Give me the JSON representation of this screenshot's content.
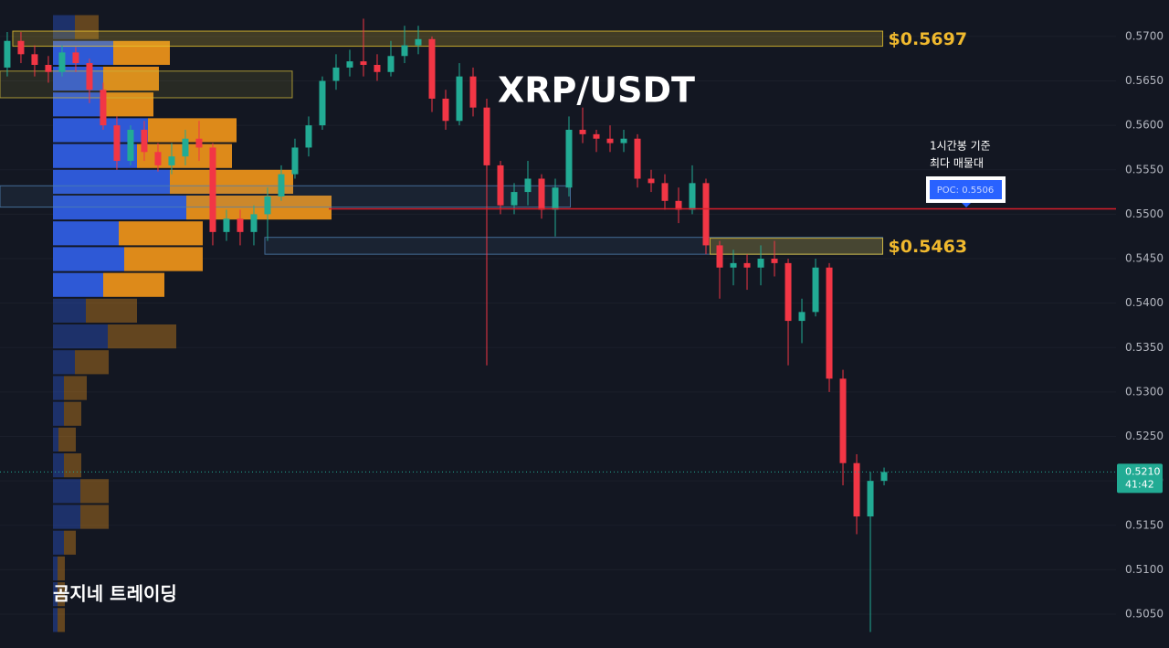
{
  "chart_data": {
    "type": "candlestick",
    "title": "XRP/USDT",
    "watermark": "곰지네 트레이딩",
    "up_color": "#22ab94",
    "down_color": "#f23645",
    "xlim": [
      -0.53,
      80.93
    ],
    "ylim": [
      0.5012,
      0.5741
    ],
    "yticks": [
      {
        "value": 0.505,
        "label": "0.5050"
      },
      {
        "value": 0.51,
        "label": "0.5100"
      },
      {
        "value": 0.515,
        "label": "0.5150"
      },
      {
        "value": 0.52,
        "label": "0.5200"
      },
      {
        "value": 0.525,
        "label": "0.5250"
      },
      {
        "value": 0.53,
        "label": "0.5300"
      },
      {
        "value": 0.535,
        "label": "0.5350"
      },
      {
        "value": 0.54,
        "label": "0.5400"
      },
      {
        "value": 0.545,
        "label": "0.5450"
      },
      {
        "value": 0.55,
        "label": "0.5500"
      },
      {
        "value": 0.555,
        "label": "0.5550"
      },
      {
        "value": 0.56,
        "label": "0.5600"
      },
      {
        "value": 0.565,
        "label": "0.5650"
      },
      {
        "value": 0.57,
        "label": "0.5700"
      }
    ],
    "x": [
      0,
      1,
      2,
      3,
      4,
      5,
      6,
      7,
      8,
      9,
      10,
      11,
      12,
      13,
      14,
      15,
      16,
      17,
      18,
      19,
      20,
      21,
      22,
      23,
      24,
      25,
      26,
      27,
      28,
      29,
      30,
      31,
      32,
      33,
      34,
      35,
      36,
      37,
      38,
      39,
      40,
      41,
      42,
      43,
      44,
      45,
      46,
      47,
      48,
      49,
      50,
      51,
      52,
      53,
      54,
      55,
      56,
      57,
      58,
      59,
      60,
      61,
      62,
      63,
      64
    ],
    "open": [
      0.5665,
      0.5695,
      0.568,
      0.5668,
      0.566,
      0.5682,
      0.567,
      0.564,
      0.56,
      0.556,
      0.5595,
      0.557,
      0.5555,
      0.5565,
      0.5585,
      0.5575,
      0.548,
      0.5495,
      0.548,
      0.55,
      0.552,
      0.5545,
      0.5575,
      0.56,
      0.565,
      0.5665,
      0.5672,
      0.5668,
      0.566,
      0.5678,
      0.569,
      0.5697,
      0.563,
      0.5605,
      0.5655,
      0.562,
      0.5555,
      0.551,
      0.5525,
      0.554,
      0.5505,
      0.553,
      0.5595,
      0.559,
      0.5585,
      0.558,
      0.5585,
      0.554,
      0.5535,
      0.5515,
      0.5505,
      0.5535,
      0.5465,
      0.544,
      0.5445,
      0.544,
      0.545,
      0.5445,
      0.538,
      0.539,
      0.544,
      0.5315,
      0.522,
      0.516,
      0.52
    ],
    "high": [
      0.5705,
      0.5705,
      0.569,
      0.5678,
      0.569,
      0.5688,
      0.5675,
      0.5648,
      0.561,
      0.56,
      0.5605,
      0.558,
      0.558,
      0.5595,
      0.5605,
      0.558,
      0.5505,
      0.5505,
      0.551,
      0.553,
      0.5555,
      0.5585,
      0.561,
      0.5655,
      0.568,
      0.5685,
      0.572,
      0.568,
      0.5695,
      0.5712,
      0.5712,
      0.57,
      0.564,
      0.567,
      0.5665,
      0.563,
      0.556,
      0.5535,
      0.556,
      0.5545,
      0.554,
      0.561,
      0.562,
      0.5595,
      0.56,
      0.5595,
      0.559,
      0.555,
      0.5545,
      0.553,
      0.5555,
      0.554,
      0.547,
      0.546,
      0.5455,
      0.5465,
      0.547,
      0.545,
      0.5405,
      0.545,
      0.5445,
      0.5325,
      0.523,
      0.521,
      0.5215
    ],
    "low": [
      0.5655,
      0.567,
      0.5655,
      0.5648,
      0.5655,
      0.566,
      0.5625,
      0.5595,
      0.555,
      0.5555,
      0.556,
      0.5548,
      0.5545,
      0.5555,
      0.556,
      0.5465,
      0.547,
      0.5465,
      0.5465,
      0.547,
      0.5515,
      0.554,
      0.5565,
      0.5595,
      0.564,
      0.5655,
      0.5655,
      0.565,
      0.5655,
      0.567,
      0.568,
      0.5615,
      0.5595,
      0.56,
      0.561,
      0.533,
      0.55,
      0.55,
      0.551,
      0.5495,
      0.5475,
      0.552,
      0.558,
      0.557,
      0.557,
      0.557,
      0.553,
      0.5525,
      0.5505,
      0.549,
      0.55,
      0.5455,
      0.5405,
      0.542,
      0.5415,
      0.542,
      0.543,
      0.533,
      0.5355,
      0.5385,
      0.53,
      0.5195,
      0.514,
      0.503,
      0.5195
    ],
    "close": [
      0.5695,
      0.568,
      0.5668,
      0.566,
      0.5682,
      0.567,
      0.564,
      0.56,
      0.556,
      0.5595,
      0.557,
      0.5555,
      0.5565,
      0.5585,
      0.5575,
      0.548,
      0.5495,
      0.548,
      0.55,
      0.552,
      0.5545,
      0.5575,
      0.56,
      0.565,
      0.5665,
      0.5672,
      0.5668,
      0.566,
      0.5678,
      0.569,
      0.5697,
      0.563,
      0.5605,
      0.5655,
      0.562,
      0.5555,
      0.551,
      0.5525,
      0.554,
      0.5505,
      0.553,
      0.5595,
      0.559,
      0.5585,
      0.558,
      0.5585,
      0.554,
      0.5535,
      0.5515,
      0.5505,
      0.5535,
      0.5465,
      0.544,
      0.5445,
      0.544,
      0.545,
      0.5445,
      0.538,
      0.539,
      0.544,
      0.5315,
      0.522,
      0.516,
      0.52,
      0.521
    ],
    "profile": {
      "bins": [
        0.5725,
        0.5696,
        0.5667,
        0.5638,
        0.5609,
        0.558,
        0.5551,
        0.5522,
        0.5493,
        0.5464,
        0.5435,
        0.5406,
        0.5377,
        0.5348,
        0.5319,
        0.529,
        0.5261,
        0.5232,
        0.5203,
        0.5174,
        0.5145,
        0.5116,
        0.5087,
        0.5058,
        0.5029
      ],
      "buy": [
        24,
        66,
        55,
        55,
        104,
        92,
        128,
        146,
        72,
        78,
        55,
        36,
        60,
        24,
        12,
        12,
        6,
        12,
        30,
        30,
        12,
        5,
        5,
        5
      ],
      "sell": [
        26,
        62,
        61,
        55,
        97,
        104,
        135,
        159,
        92,
        86,
        67,
        56,
        75,
        37,
        25,
        19,
        19,
        19,
        31,
        31,
        13,
        8,
        8,
        8
      ],
      "xlim": [
        0,
        1164
      ],
      "value_area": [
        0.5696,
        0.5406
      ],
      "buy_color": "#2f5de0",
      "sell_color": "#e8901a"
    },
    "zones": [
      {
        "lo": 0.5631,
        "hi": 0.5661,
        "x0": -0.53,
        "x1": 20.8,
        "color": "#c9b13a"
      },
      {
        "lo": 0.5508,
        "hi": 0.5532,
        "x0": -0.53,
        "x1": 41.1,
        "color": "#4f7fb0"
      },
      {
        "lo": 0.5455,
        "hi": 0.5474,
        "x0": 18.8,
        "x1": 63.9,
        "color": "#4f7fb0"
      },
      {
        "lo": 0.5689,
        "hi": 0.5706,
        "x0": 0.4,
        "x1": 63.9,
        "color": "#e8c430",
        "label": "$0.5697"
      },
      {
        "lo": 0.5455,
        "hi": 0.5473,
        "x0": 51.3,
        "x1": 63.9,
        "color": "#e8c430",
        "label": "$0.5463"
      }
    ],
    "poc": {
      "value": 0.5506,
      "label": "POC: 0.5506"
    },
    "annotation": [
      "1시간봉 기준",
      "최다 매물대"
    ],
    "last_price": {
      "value": 0.521,
      "label": "0.5210"
    },
    "countdown": "41:42"
  }
}
